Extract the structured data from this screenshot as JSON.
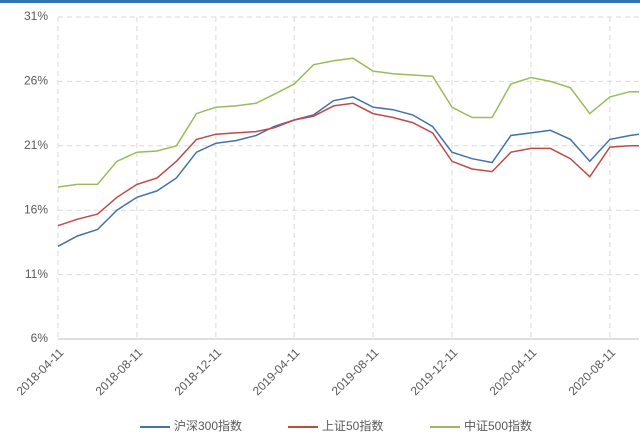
{
  "chart_data": {
    "type": "line",
    "x": [
      "2018-04-11",
      "2018-05-11",
      "2018-06-11",
      "2018-07-11",
      "2018-08-11",
      "2018-09-11",
      "2018-10-11",
      "2018-11-11",
      "2018-12-11",
      "2019-01-11",
      "2019-02-11",
      "2019-03-11",
      "2019-04-11",
      "2019-05-11",
      "2019-06-11",
      "2019-07-11",
      "2019-08-11",
      "2019-09-11",
      "2019-10-11",
      "2019-11-11",
      "2019-12-11",
      "2020-01-11",
      "2020-02-11",
      "2020-03-11",
      "2020-04-11",
      "2020-05-11",
      "2020-06-11",
      "2020-07-11",
      "2020-08-11",
      "2020-09-11",
      "2020-09-25"
    ],
    "series": [
      {
        "name": "沪深300指数",
        "color": "#4472a8",
        "values": [
          13.2,
          14.0,
          14.5,
          16.0,
          17.0,
          17.5,
          18.5,
          20.5,
          21.2,
          21.4,
          21.8,
          22.5,
          23.0,
          23.4,
          24.5,
          24.8,
          24.0,
          23.8,
          23.4,
          22.5,
          20.5,
          20.0,
          19.7,
          21.8,
          22.0,
          22.2,
          21.5,
          19.8,
          21.5,
          21.8,
          21.9
        ]
      },
      {
        "name": "上证50指数",
        "color": "#be4b48",
        "values": [
          14.8,
          15.3,
          15.7,
          17.0,
          18.0,
          18.5,
          19.8,
          21.5,
          21.9,
          22.0,
          22.1,
          22.4,
          23.0,
          23.3,
          24.1,
          24.3,
          23.5,
          23.2,
          22.8,
          22.0,
          19.8,
          19.2,
          19.0,
          20.5,
          20.8,
          20.8,
          20.0,
          18.6,
          20.9,
          21.0,
          21.0
        ]
      },
      {
        "name": "中证500指数",
        "color": "#9bbb59",
        "values": [
          17.8,
          18.0,
          18.0,
          19.8,
          20.5,
          20.6,
          21.0,
          23.5,
          24.0,
          24.1,
          24.3,
          25.0,
          25.8,
          27.3,
          27.6,
          27.8,
          26.8,
          26.6,
          26.5,
          26.4,
          24.0,
          23.2,
          23.2,
          25.8,
          26.3,
          26.0,
          25.5,
          23.5,
          24.8,
          25.2,
          25.2
        ]
      }
    ],
    "xlim": [
      "2018-04-11",
      "2020-09-25"
    ],
    "xticks": [
      "2018-04-11",
      "2018-08-11",
      "2018-12-11",
      "2019-04-11",
      "2019-08-11",
      "2019-12-11",
      "2020-04-11",
      "2020-08-11"
    ],
    "ylim": [
      6,
      31
    ],
    "yticks": [
      {
        "value": 6,
        "label": "6%"
      },
      {
        "value": 11,
        "label": "11%"
      },
      {
        "value": 16,
        "label": "16%"
      },
      {
        "value": 21,
        "label": "21%"
      },
      {
        "value": 26,
        "label": "26%"
      },
      {
        "value": 31,
        "label": "31%"
      }
    ],
    "grid": true,
    "legend": "bottom"
  }
}
